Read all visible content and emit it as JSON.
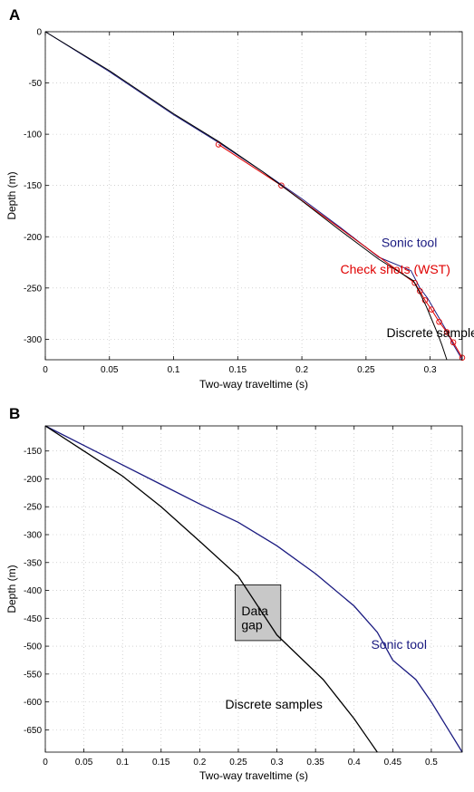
{
  "chart_data": [
    {
      "type": "line",
      "panel": "A",
      "xlabel": "Two-way traveltime (s)",
      "ylabel": "Depth (m)",
      "xlim": [
        0,
        0.325
      ],
      "ylim": [
        -320,
        0
      ],
      "xticks": [
        0,
        0.05,
        0.1,
        0.15,
        0.2,
        0.25,
        0.3
      ],
      "yticks": [
        0,
        -50,
        -100,
        -150,
        -200,
        -250,
        -300
      ],
      "grid": true,
      "series": [
        {
          "name": "Sonic tool",
          "color": "#1a1a80",
          "marker": "none",
          "x": [
            0,
            0.05,
            0.1,
            0.135,
            0.17,
            0.2,
            0.23,
            0.26,
            0.285,
            0.292,
            0.298,
            0.305,
            0.312,
            0.318,
            0.325
          ],
          "y": [
            0,
            -39,
            -81,
            -108,
            -137,
            -163,
            -191,
            -220,
            -233,
            -250,
            -260,
            -275,
            -290,
            -305,
            -320
          ]
        },
        {
          "name": "Check shots (WST)",
          "color": "#e00000",
          "marker": "circle",
          "x": [
            0.135,
            0.184,
            0.288,
            0.292,
            0.296,
            0.301,
            0.307,
            0.313,
            0.318,
            0.325
          ],
          "y": [
            -110,
            -150,
            -245,
            -253,
            -262,
            -271,
            -283,
            -293,
            -303,
            -318
          ]
        },
        {
          "name": "Discrete samples",
          "color": "#000000",
          "marker": "none",
          "x": [
            0,
            0.05,
            0.1,
            0.135,
            0.17,
            0.2,
            0.23,
            0.26,
            0.287,
            0.292,
            0.297,
            0.301,
            0.305,
            0.309,
            0.313
          ],
          "y": [
            0,
            -38,
            -80,
            -107,
            -137,
            -165,
            -194,
            -222,
            -243,
            -255,
            -268,
            -280,
            -292,
            -305,
            -320
          ]
        }
      ],
      "annotations": [
        {
          "text": "Sonic tool",
          "color": "#1a1a80",
          "x": 0.262,
          "y": -210
        },
        {
          "text": "Check shots (WST)",
          "color": "#e00000",
          "x": 0.23,
          "y": -236
        },
        {
          "text": "Discrete samples",
          "color": "#000000",
          "x": 0.266,
          "y": -298
        }
      ]
    },
    {
      "type": "line",
      "panel": "B",
      "xlabel": "Two-way traveltime (s)",
      "ylabel": "Depth (m)",
      "xlim": [
        0,
        0.54
      ],
      "ylim": [
        -690,
        -105
      ],
      "xticks": [
        0,
        0.05,
        0.1,
        0.15,
        0.2,
        0.25,
        0.3,
        0.35,
        0.4,
        0.45,
        0.5
      ],
      "yticks": [
        -150,
        -200,
        -250,
        -300,
        -350,
        -400,
        -450,
        -500,
        -550,
        -600,
        -650
      ],
      "grid": true,
      "series": [
        {
          "name": "Sonic tool",
          "color": "#1a1a80",
          "marker": "none",
          "x": [
            0,
            0.05,
            0.1,
            0.15,
            0.2,
            0.25,
            0.3,
            0.35,
            0.4,
            0.43,
            0.45,
            0.48,
            0.5,
            0.52,
            0.54
          ],
          "y": [
            -105,
            -140,
            -175,
            -210,
            -245,
            -278,
            -320,
            -370,
            -428,
            -475,
            -525,
            -560,
            -600,
            -645,
            -690
          ]
        },
        {
          "name": "Discrete samples",
          "color": "#000000",
          "marker": "none",
          "x": [
            0,
            0.05,
            0.1,
            0.15,
            0.2,
            0.25,
            0.3,
            0.33,
            0.36,
            0.38,
            0.4,
            0.42,
            0.43
          ],
          "y": [
            -105,
            -150,
            -195,
            -250,
            -312,
            -375,
            -480,
            -520,
            -560,
            -595,
            -630,
            -670,
            -690
          ]
        }
      ],
      "gap_box": {
        "x": [
          0.246,
          0.305
        ],
        "y": [
          -390,
          -490
        ]
      },
      "annotations": [
        {
          "text": "Data",
          "color": "#000000",
          "x": 0.254,
          "y": -445
        },
        {
          "text": "gap",
          "color": "#000000",
          "x": 0.254,
          "y": -470
        },
        {
          "text": "Sonic tool",
          "color": "#1a1a80",
          "x": 0.422,
          "y": -505
        },
        {
          "text": "Discrete samples",
          "color": "#000000",
          "x": 0.233,
          "y": -612
        }
      ]
    }
  ]
}
